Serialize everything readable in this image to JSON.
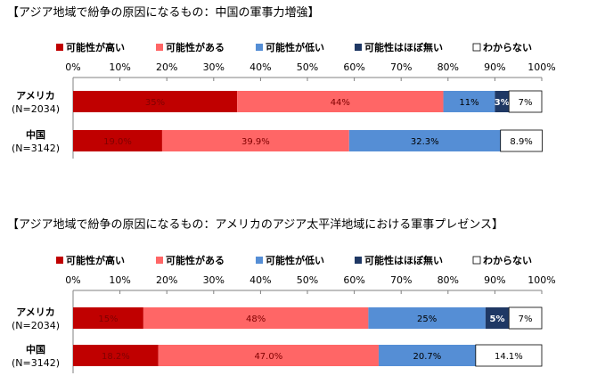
{
  "chart_data": [
    {
      "type": "bar",
      "orientation": "horizontal",
      "stacked": true,
      "title": "【アジア地域で紛争の原因になるもの：中国の軍事力増強】",
      "categories": [
        {
          "name": "アメリカ",
          "n": "(N=2034)"
        },
        {
          "name": "中国",
          "n": "(N=3142)"
        }
      ],
      "x_ticks": [
        "0%",
        "10%",
        "20%",
        "30%",
        "40%",
        "50%",
        "60%",
        "70%",
        "80%",
        "90%",
        "100%"
      ],
      "xlim": [
        0,
        100
      ],
      "legend_position": "top",
      "series": [
        {
          "name": "可能性が高い",
          "color": "#c00000",
          "values": [
            35,
            19.0
          ],
          "labels": [
            "35%",
            "19.0%"
          ],
          "label_color": "#800000"
        },
        {
          "name": "可能性がある",
          "color": "#ff6666",
          "values": [
            44,
            39.9
          ],
          "labels": [
            "44%",
            "39.9%"
          ],
          "label_color": "#800000"
        },
        {
          "name": "可能性が低い",
          "color": "#558ed5",
          "values": [
            11,
            32.3
          ],
          "labels": [
            "11%",
            "32.3%"
          ],
          "label_color": "#000000"
        },
        {
          "name": "可能性はほぼ無い",
          "color": "#1f3864",
          "values": [
            3,
            0
          ],
          "labels": [
            "3%",
            ""
          ],
          "label_color": "#ffffff"
        },
        {
          "name": "わからない",
          "color": "#ffffff",
          "values": [
            7,
            8.9
          ],
          "labels": [
            "7%",
            "8.9%"
          ],
          "label_color": "#000000"
        }
      ]
    },
    {
      "type": "bar",
      "orientation": "horizontal",
      "stacked": true,
      "title": "【アジア地域で紛争の原因になるもの：アメリカのアジア太平洋地域における軍事プレゼンス】",
      "categories": [
        {
          "name": "アメリカ",
          "n": "(N=2034)"
        },
        {
          "name": "中国",
          "n": "(N=3142)"
        }
      ],
      "x_ticks": [
        "0%",
        "10%",
        "20%",
        "30%",
        "40%",
        "50%",
        "60%",
        "70%",
        "80%",
        "90%",
        "100%"
      ],
      "xlim": [
        0,
        100
      ],
      "legend_position": "top",
      "series": [
        {
          "name": "可能性が高い",
          "color": "#c00000",
          "values": [
            15,
            18.2
          ],
          "labels": [
            "15%",
            "18.2%"
          ],
          "label_color": "#800000"
        },
        {
          "name": "可能性がある",
          "color": "#ff6666",
          "values": [
            48,
            47.0
          ],
          "labels": [
            "48%",
            "47.0%"
          ],
          "label_color": "#800000"
        },
        {
          "name": "可能性が低い",
          "color": "#558ed5",
          "values": [
            25,
            20.7
          ],
          "labels": [
            "25%",
            "20.7%"
          ],
          "label_color": "#000000"
        },
        {
          "name": "可能性はほぼ無い",
          "color": "#1f3864",
          "values": [
            5,
            0
          ],
          "labels": [
            "5%",
            ""
          ],
          "label_color": "#ffffff"
        },
        {
          "name": "わからない",
          "color": "#ffffff",
          "values": [
            7,
            14.1
          ],
          "labels": [
            "7%",
            "14.1%"
          ],
          "label_color": "#000000"
        }
      ]
    }
  ]
}
